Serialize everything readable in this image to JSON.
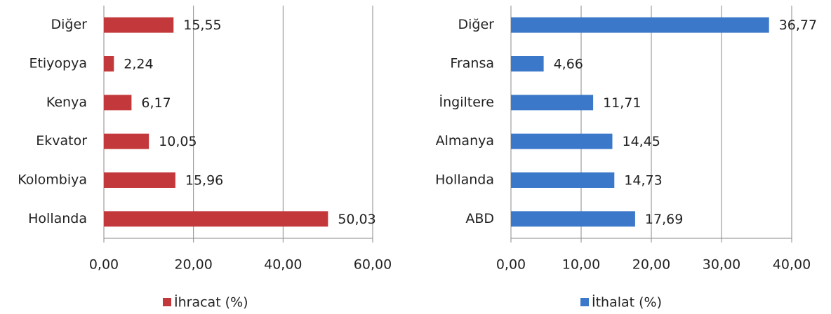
{
  "chart_data": [
    {
      "type": "bar",
      "orientation": "horizontal",
      "categories": [
        "Diğer",
        "Etiyopya",
        "Kenya",
        "Ekvator",
        "Kolombiya",
        "Hollanda"
      ],
      "series": [
        {
          "name": "İhracat (%)",
          "color": "#c3393b",
          "values": [
            15.55,
            2.24,
            6.17,
            10.05,
            15.96,
            50.03
          ],
          "value_labels": [
            "15,55",
            "2,24",
            "6,17",
            "10,05",
            "15,96",
            "50,03"
          ]
        }
      ],
      "xlim": [
        0,
        60
      ],
      "xticks": [
        {
          "value": 0,
          "label": "0,00"
        },
        {
          "value": 20,
          "label": "20,00"
        },
        {
          "value": 40,
          "label": "40,00"
        },
        {
          "value": 60,
          "label": "60,00"
        }
      ],
      "grid": true,
      "legend": "bottom"
    },
    {
      "type": "bar",
      "orientation": "horizontal",
      "categories": [
        "Diğer",
        "Fransa",
        "İngiltere",
        "Almanya",
        "Hollanda",
        "ABD"
      ],
      "series": [
        {
          "name": "İthalat (%)",
          "color": "#3b78c9",
          "values": [
            36.77,
            4.66,
            11.71,
            14.45,
            14.73,
            17.69
          ],
          "value_labels": [
            "36,77",
            "4,66",
            "11,71",
            "14,45",
            "14,73",
            "17,69"
          ]
        }
      ],
      "xlim": [
        0,
        40
      ],
      "xticks": [
        {
          "value": 0,
          "label": "0,00"
        },
        {
          "value": 10,
          "label": "10,00"
        },
        {
          "value": 20,
          "label": "20,00"
        },
        {
          "value": 30,
          "label": "30,00"
        },
        {
          "value": 40,
          "label": "40,00"
        }
      ],
      "grid": true,
      "legend": "bottom"
    }
  ]
}
